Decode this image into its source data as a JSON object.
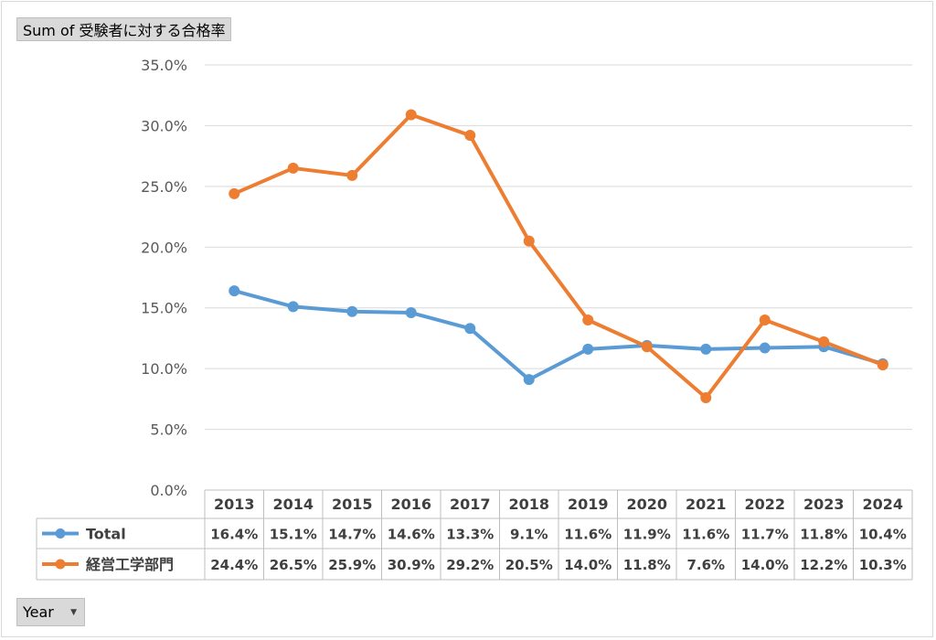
{
  "value_field": {
    "label": "Sum of 受験者に対する合格率"
  },
  "axis_field": {
    "label": "Year",
    "dropdown_icon": "chevron-down-icon"
  },
  "chart_data": {
    "type": "line",
    "x": [
      "2013",
      "2014",
      "2015",
      "2016",
      "2017",
      "2018",
      "2019",
      "2020",
      "2021",
      "2022",
      "2023",
      "2024"
    ],
    "ylim": [
      0,
      35
    ],
    "y_ticks": [
      "0.0%",
      "5.0%",
      "10.0%",
      "15.0%",
      "20.0%",
      "25.0%",
      "30.0%",
      "35.0%"
    ],
    "grid": true,
    "legend": "data-table-left",
    "series": [
      {
        "name": "Total",
        "color": "#5b9bd5",
        "values": [
          16.4,
          15.1,
          14.7,
          14.6,
          13.3,
          9.1,
          11.6,
          11.9,
          11.6,
          11.7,
          11.8,
          10.4
        ],
        "labels": [
          "16.4%",
          "15.1%",
          "14.7%",
          "14.6%",
          "13.3%",
          "9.1%",
          "11.6%",
          "11.9%",
          "11.6%",
          "11.7%",
          "11.8%",
          "10.4%"
        ]
      },
      {
        "name": "経営工学部門",
        "color": "#ed7d31",
        "values": [
          24.4,
          26.5,
          25.9,
          30.9,
          29.2,
          20.5,
          14.0,
          11.8,
          7.6,
          14.0,
          12.2,
          10.3
        ],
        "labels": [
          "24.4%",
          "26.5%",
          "25.9%",
          "30.9%",
          "29.2%",
          "20.5%",
          "14.0%",
          "11.8%",
          "7.6%",
          "14.0%",
          "12.2%",
          "10.3%"
        ]
      }
    ]
  }
}
